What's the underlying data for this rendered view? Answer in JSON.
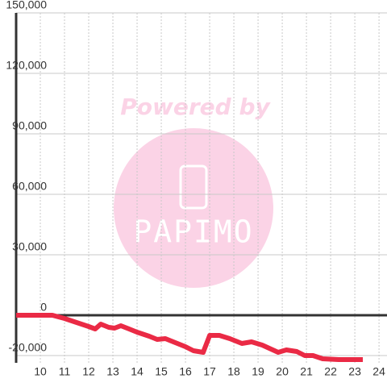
{
  "chart_data": {
    "type": "line",
    "x": [
      9,
      10.5,
      11,
      11.5,
      12,
      12.27,
      12.5,
      12.83,
      13.07,
      13.33,
      13.67,
      14,
      14.5,
      14.83,
      15.17,
      15.5,
      16,
      16.33,
      16.73,
      17,
      17.4,
      17.83,
      18.33,
      18.73,
      19.17,
      19.83,
      20.17,
      20.6,
      20.93,
      21.27,
      21.67,
      22.33,
      23.33
    ],
    "series": [
      {
        "color": "#ea2a45",
        "values": [
          0,
          0,
          -1600,
          -3600,
          -5600,
          -6800,
          -4400,
          -6000,
          -6400,
          -5200,
          -6800,
          -8400,
          -10400,
          -12000,
          -11600,
          -13200,
          -15600,
          -17600,
          -18400,
          -10000,
          -10000,
          -11600,
          -14000,
          -13200,
          -14800,
          -18400,
          -17200,
          -18000,
          -20000,
          -20000,
          -21600,
          -22000,
          -22000
        ]
      }
    ],
    "xlim": [
      9,
      24.33
    ],
    "ylim": [
      -23600,
      150000
    ],
    "xticks": [
      10,
      11,
      12,
      13,
      14,
      15,
      16,
      17,
      18,
      19,
      20,
      21,
      22,
      23,
      24
    ],
    "yticks": [
      {
        "value": -20000,
        "label": "-20,000"
      },
      0,
      {
        "value": 30000,
        "label": "30,000"
      },
      {
        "value": 60000,
        "label": "60,000"
      },
      {
        "value": 90000,
        "label": "90,000"
      },
      {
        "value": 120000,
        "label": "120,000"
      },
      {
        "value": 150000,
        "label": "150,000"
      }
    ],
    "grid": true,
    "watermark": {
      "top": "Powered by",
      "logo": "PAPIMO"
    }
  }
}
